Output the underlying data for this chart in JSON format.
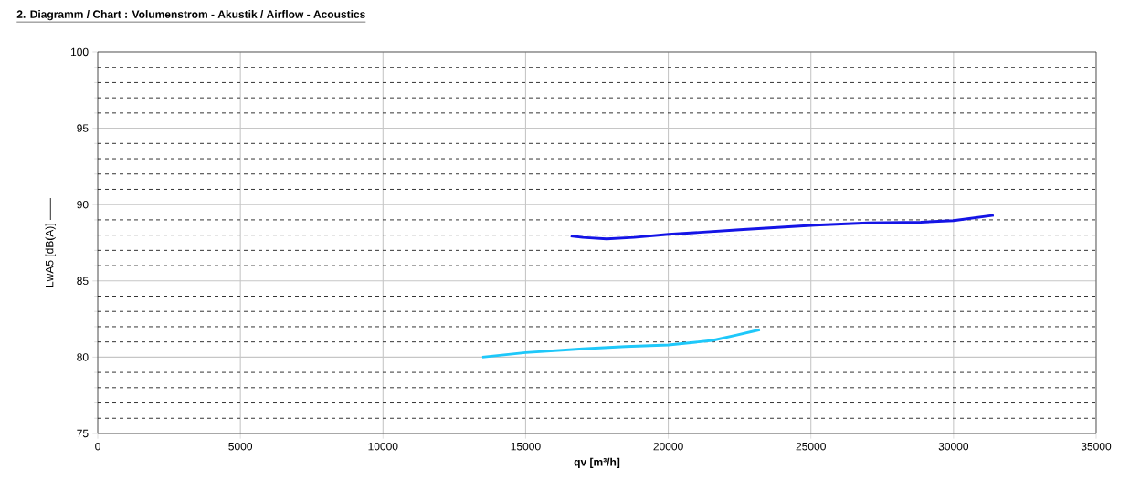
{
  "chart_data": {
    "type": "line",
    "title": "2. Diagramm / Chart :   Volumenstrom - Akustik / Airflow - Acoustics",
    "xlabel": "qv [m³/h]",
    "ylabel": "LwA5 [dB(A)] ——",
    "xlim": [
      0,
      35000
    ],
    "ylim": [
      75,
      100
    ],
    "xticks": [
      0,
      5000,
      10000,
      15000,
      20000,
      25000,
      30000,
      35000
    ],
    "yticks": [
      75,
      80,
      85,
      90,
      95,
      100
    ],
    "grid": true,
    "line_style": "solid",
    "series": [
      {
        "color": "#1414e6",
        "x": [
          16580,
          17000,
          17840,
          18800,
          20010,
          22500,
          25140,
          27000,
          28850,
          30000,
          31410
        ],
        "values": [
          87.95,
          87.85,
          87.75,
          87.85,
          88.05,
          88.35,
          88.65,
          88.8,
          88.85,
          88.95,
          89.3
        ]
      },
      {
        "color": "#1ec8fa",
        "x": [
          13480,
          15000,
          17000,
          18500,
          20010,
          21550,
          22400,
          23210
        ],
        "values": [
          80.0,
          80.3,
          80.55,
          80.7,
          80.8,
          81.1,
          81.45,
          81.8
        ]
      }
    ]
  }
}
